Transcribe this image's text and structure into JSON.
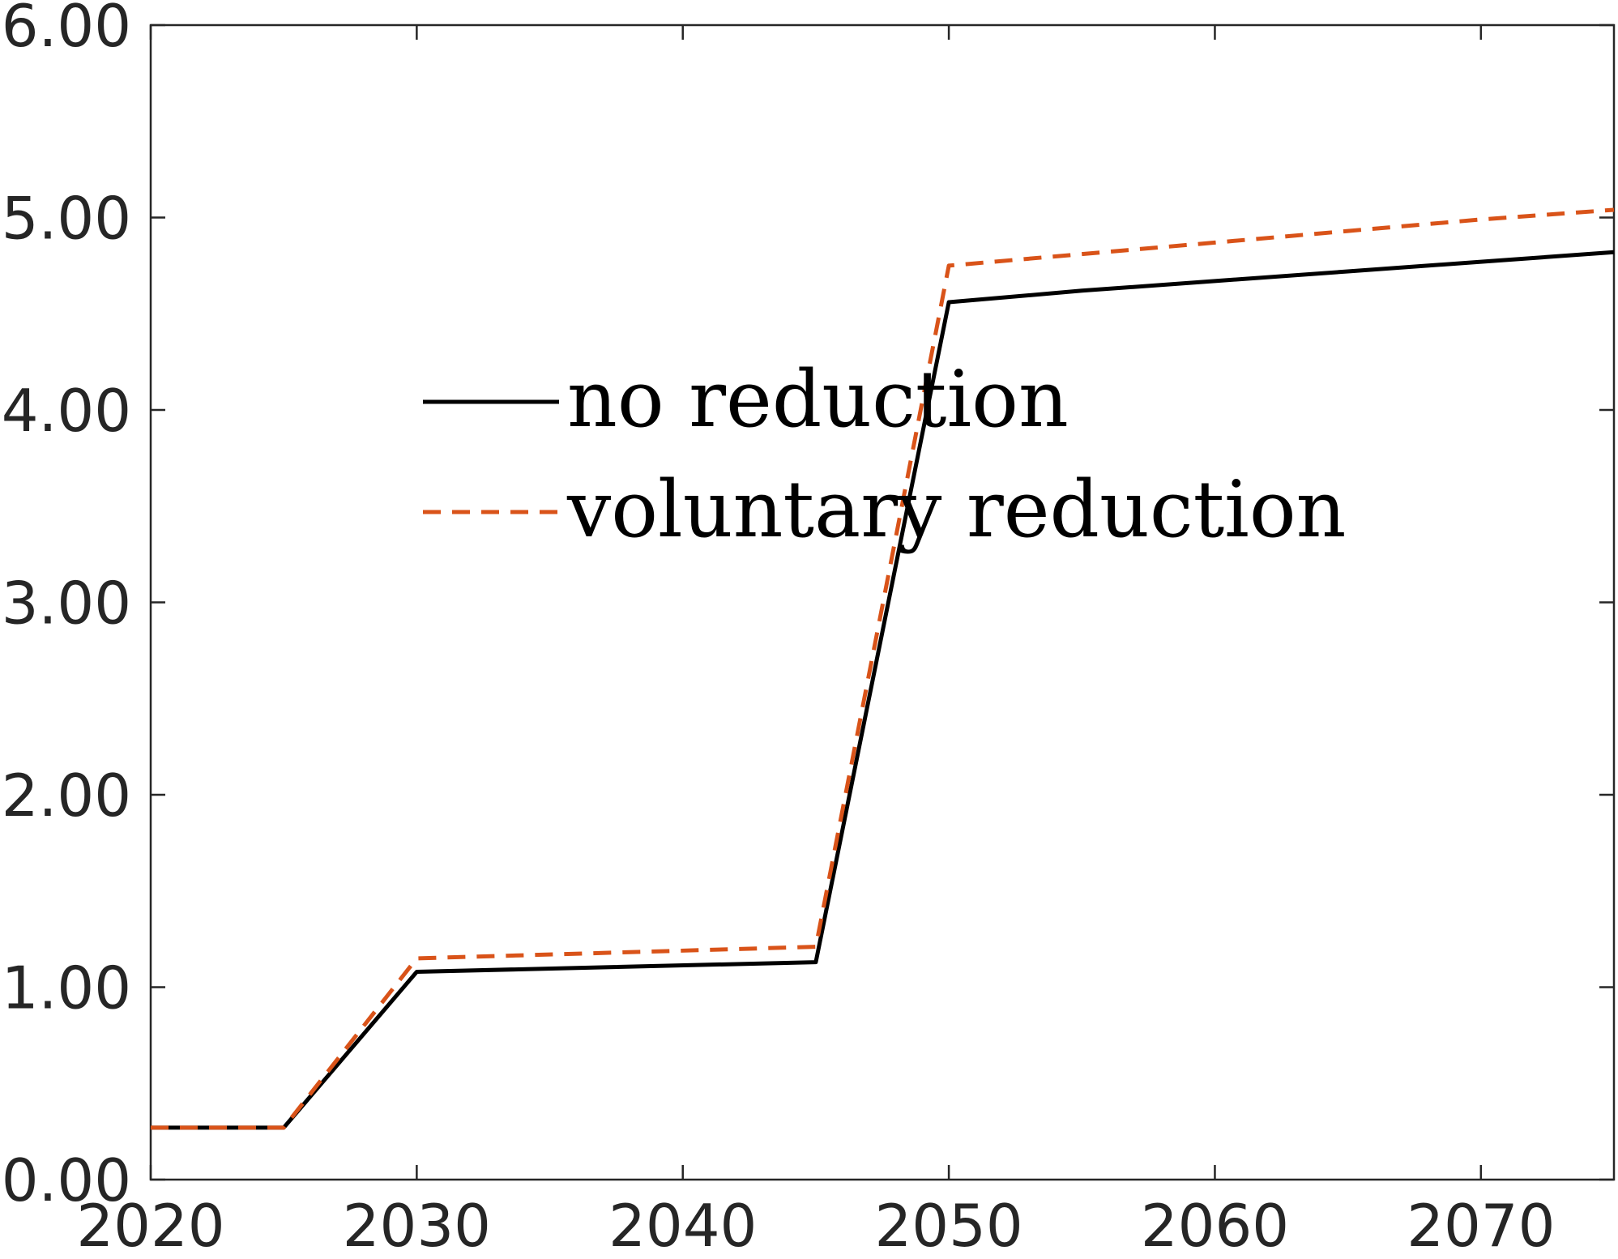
{
  "chart_data": {
    "type": "line",
    "title": "",
    "xlabel": "",
    "ylabel": "",
    "xlim": [
      2020,
      2075
    ],
    "ylim": [
      0,
      6
    ],
    "x_ticks": [
      2020,
      2030,
      2040,
      2050,
      2060,
      2070
    ],
    "x_tick_labels": [
      "2020",
      "2030",
      "2040",
      "2050",
      "2060",
      "2070"
    ],
    "y_ticks": [
      0,
      1,
      2,
      3,
      4,
      5,
      6
    ],
    "y_tick_labels": [
      "0.00",
      "1.00",
      "2.00",
      "3.00",
      "4.00",
      "5.00",
      "6.00"
    ],
    "grid": false,
    "legend_position": "center-left, upper half",
    "series": [
      {
        "name": "no reduction",
        "color": "#000000",
        "style": "solid",
        "x": [
          2020,
          2025,
          2030,
          2045,
          2050,
          2055,
          2060,
          2065,
          2070,
          2075
        ],
        "y": [
          0.27,
          0.27,
          1.08,
          1.13,
          4.56,
          4.62,
          4.67,
          4.72,
          4.77,
          4.82
        ]
      },
      {
        "name": "voluntary reduction",
        "color": "#D95319",
        "style": "dashed",
        "x": [
          2020,
          2025,
          2030,
          2045,
          2050,
          2055,
          2060,
          2065,
          2070,
          2075
        ],
        "y": [
          0.27,
          0.27,
          1.15,
          1.21,
          4.75,
          4.81,
          4.87,
          4.93,
          4.99,
          5.04
        ]
      }
    ]
  }
}
